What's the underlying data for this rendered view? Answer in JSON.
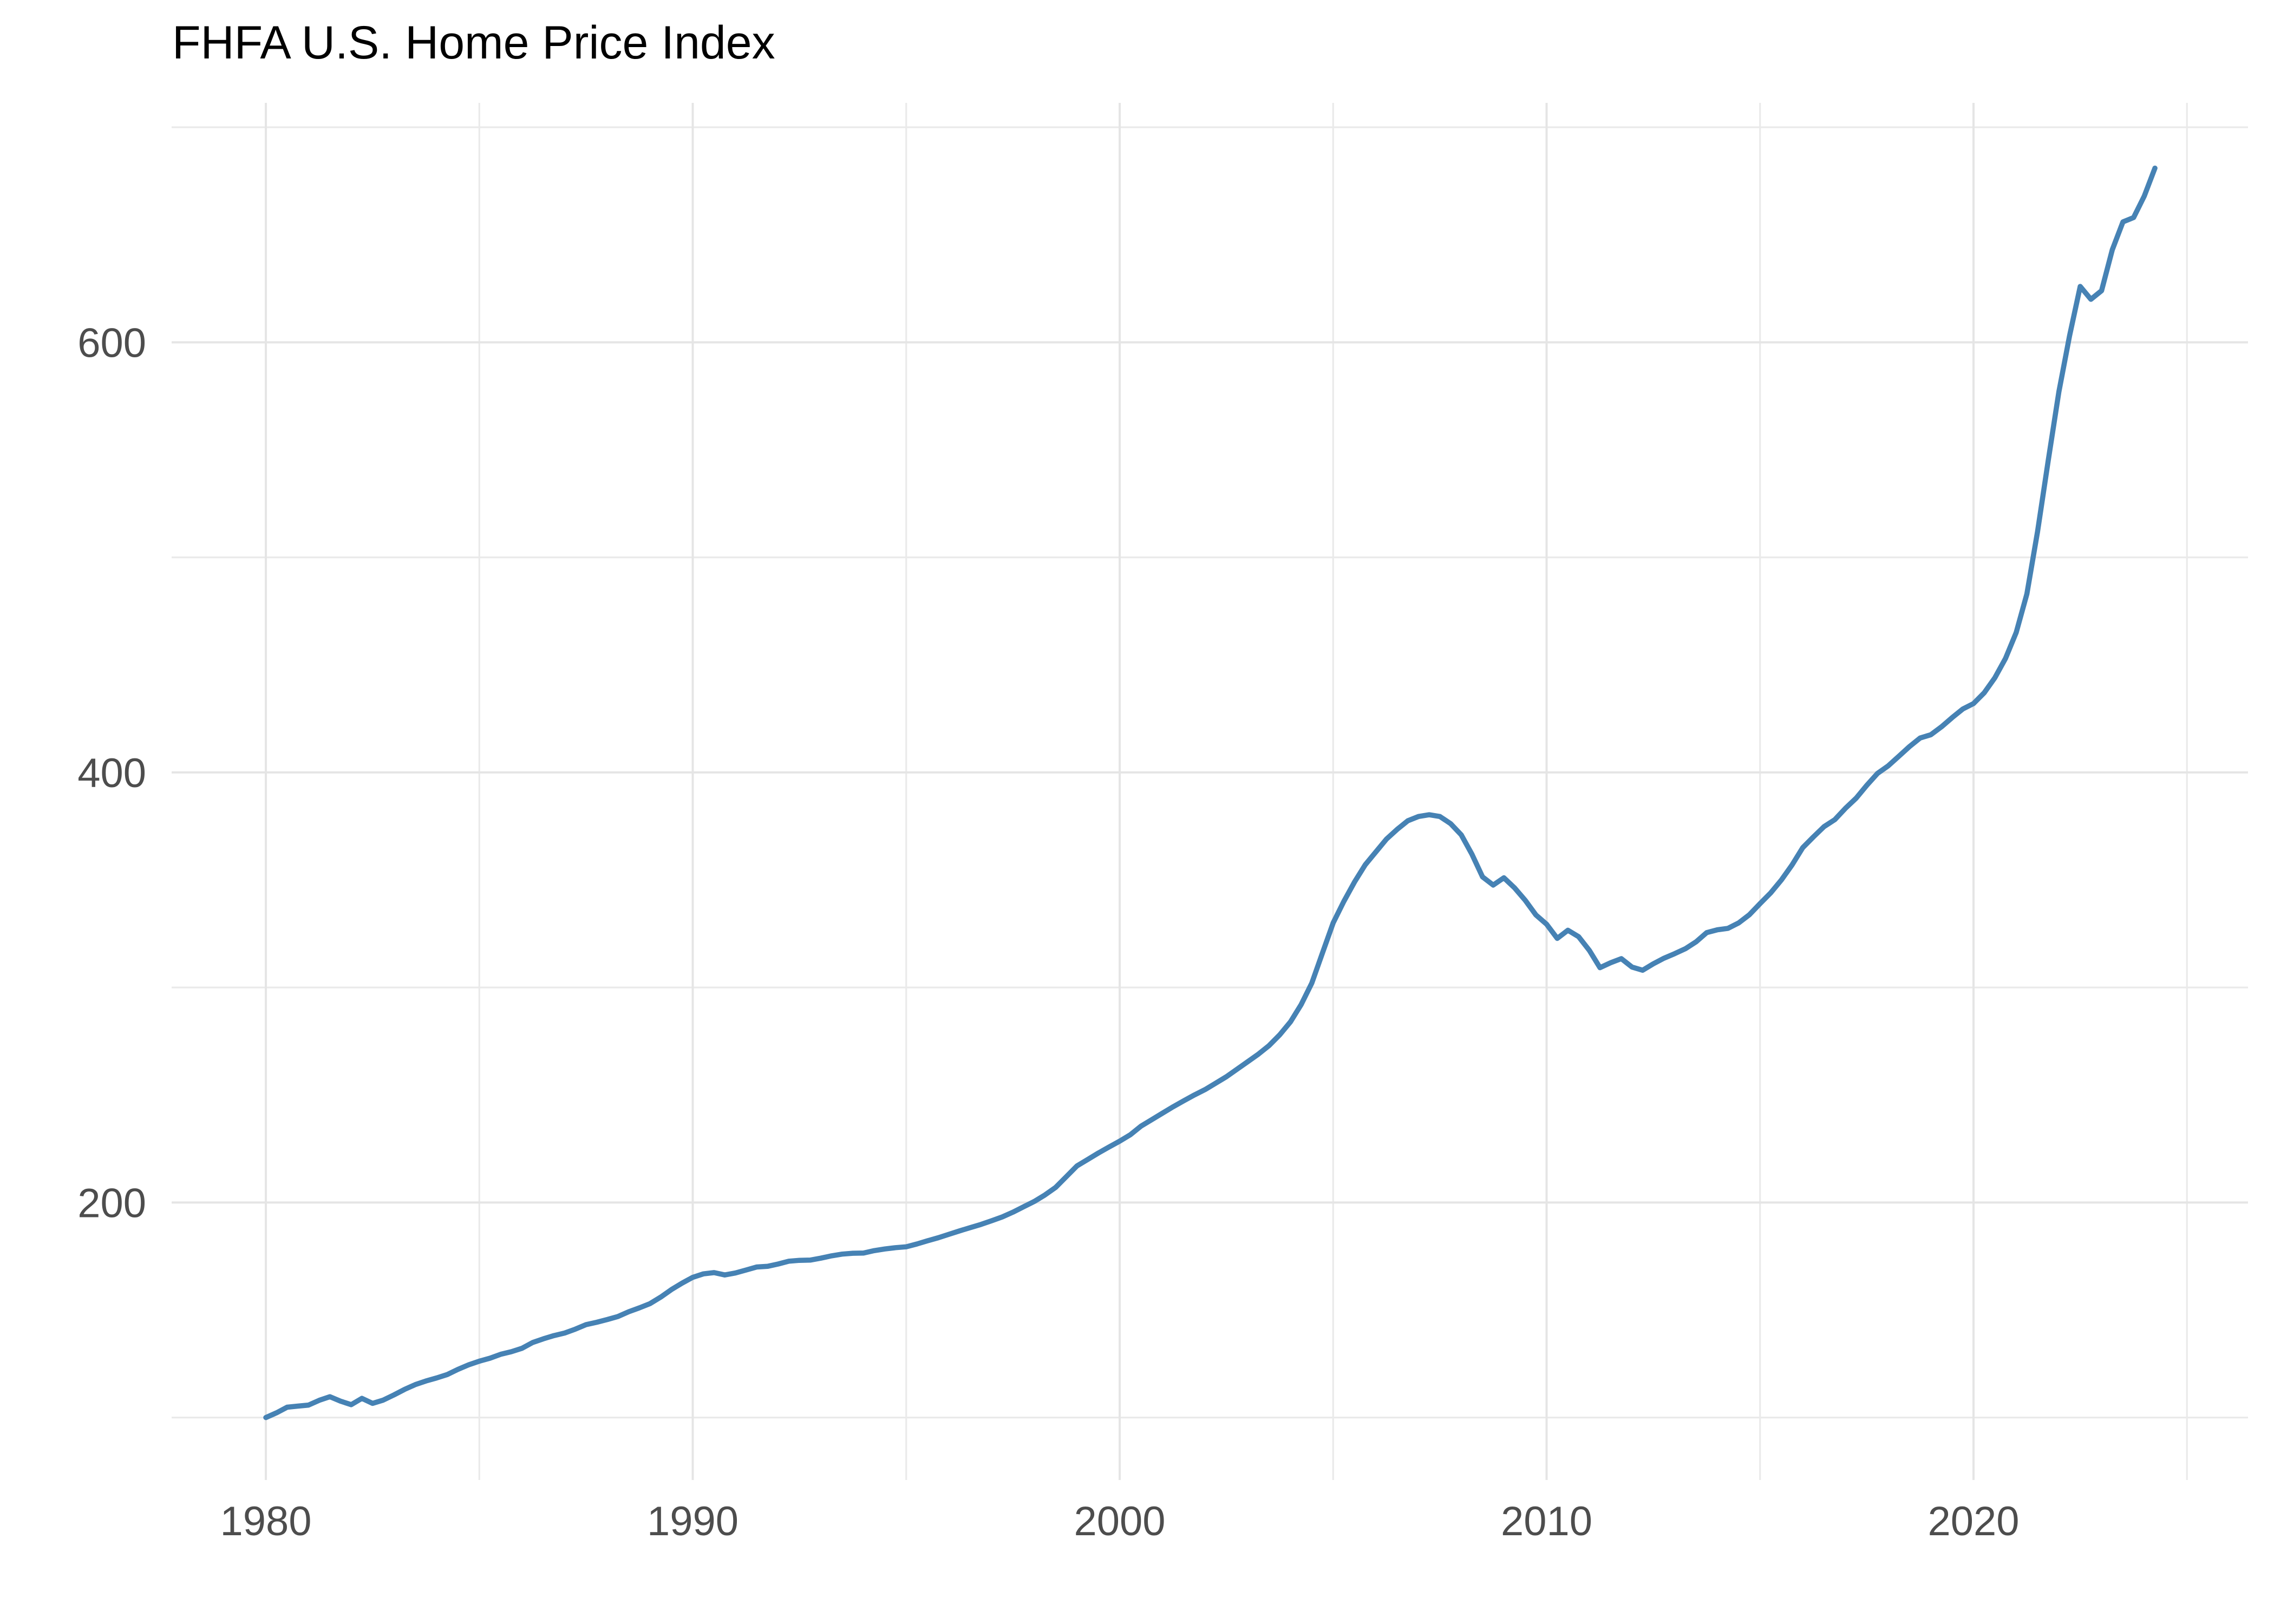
{
  "chart": {
    "title": "FHFA U.S. Home Price Index",
    "colors": {
      "line": "#4682B4",
      "grid_major": "#E5E5E5",
      "grid_minor": "#EAEAEA",
      "axis_text": "#4D4D4D",
      "title_text": "#000000",
      "background": "#FFFFFF"
    },
    "x_axis": {
      "tick_labels": [
        "1980",
        "1990",
        "2000",
        "2010",
        "2020"
      ],
      "tick_years": [
        1980,
        1990,
        2000,
        2010,
        2020
      ],
      "minor_years": [
        1985,
        1995,
        2005,
        2015,
        2025
      ]
    },
    "y_axis": {
      "tick_labels": [
        "200",
        "400",
        "600"
      ],
      "tick_values": [
        200,
        400,
        600
      ],
      "minor_values": [
        100,
        300,
        500,
        700
      ]
    }
  },
  "chart_data": {
    "type": "line",
    "title": "FHFA U.S. Home Price Index",
    "series_name": "FHFA U.S. Home Price Index",
    "frequency": "quarterly",
    "xlabel": "",
    "ylabel": "",
    "x_range": [
      1977.8,
      2026.45
    ],
    "y_range": [
      71,
      711
    ],
    "x_major_ticks": [
      1980,
      1990,
      2000,
      2010,
      2020
    ],
    "y_major_ticks": [
      200,
      400,
      600
    ],
    "grid": "on",
    "legend": "none",
    "points": [
      [
        1980.0,
        100.0
      ],
      [
        1980.25,
        102.2
      ],
      [
        1980.5,
        104.8
      ],
      [
        1980.75,
        105.3
      ],
      [
        1981.0,
        105.8
      ],
      [
        1981.25,
        108.0
      ],
      [
        1981.5,
        109.7
      ],
      [
        1981.75,
        107.6
      ],
      [
        1982.0,
        106.0
      ],
      [
        1982.25,
        108.9
      ],
      [
        1982.5,
        106.6
      ],
      [
        1982.75,
        108.1
      ],
      [
        1983.0,
        110.5
      ],
      [
        1983.25,
        113.1
      ],
      [
        1983.5,
        115.3
      ],
      [
        1983.75,
        117.0
      ],
      [
        1984.0,
        118.4
      ],
      [
        1984.25,
        120.0
      ],
      [
        1984.5,
        122.4
      ],
      [
        1984.75,
        124.5
      ],
      [
        1985.0,
        126.2
      ],
      [
        1985.25,
        127.6
      ],
      [
        1985.5,
        129.4
      ],
      [
        1985.75,
        130.6
      ],
      [
        1986.0,
        132.2
      ],
      [
        1986.25,
        134.9
      ],
      [
        1986.5,
        136.6
      ],
      [
        1986.75,
        138.1
      ],
      [
        1987.0,
        139.3
      ],
      [
        1987.25,
        141.1
      ],
      [
        1987.5,
        143.2
      ],
      [
        1987.75,
        144.3
      ],
      [
        1988.0,
        145.6
      ],
      [
        1988.25,
        147.0
      ],
      [
        1988.5,
        149.2
      ],
      [
        1988.75,
        151.0
      ],
      [
        1989.0,
        153.0
      ],
      [
        1989.25,
        156.0
      ],
      [
        1989.5,
        159.5
      ],
      [
        1989.75,
        162.5
      ],
      [
        1990.0,
        165.2
      ],
      [
        1990.25,
        166.8
      ],
      [
        1990.5,
        167.4
      ],
      [
        1990.75,
        166.3
      ],
      [
        1991.0,
        167.2
      ],
      [
        1991.25,
        168.6
      ],
      [
        1991.5,
        170.0
      ],
      [
        1991.75,
        170.3
      ],
      [
        1992.0,
        171.4
      ],
      [
        1992.25,
        172.7
      ],
      [
        1992.5,
        173.1
      ],
      [
        1992.75,
        173.2
      ],
      [
        1993.0,
        174.1
      ],
      [
        1993.25,
        175.2
      ],
      [
        1993.5,
        176.0
      ],
      [
        1993.75,
        176.4
      ],
      [
        1994.0,
        176.5
      ],
      [
        1994.25,
        177.6
      ],
      [
        1994.5,
        178.4
      ],
      [
        1994.75,
        179.0
      ],
      [
        1995.0,
        179.4
      ],
      [
        1995.25,
        180.7
      ],
      [
        1995.5,
        182.2
      ],
      [
        1995.75,
        183.6
      ],
      [
        1996.0,
        185.2
      ],
      [
        1996.25,
        186.8
      ],
      [
        1996.5,
        188.3
      ],
      [
        1996.75,
        189.8
      ],
      [
        1997.0,
        191.5
      ],
      [
        1997.25,
        193.3
      ],
      [
        1997.5,
        195.5
      ],
      [
        1997.75,
        198.0
      ],
      [
        1998.0,
        200.5
      ],
      [
        1998.25,
        203.5
      ],
      [
        1998.5,
        207.0
      ],
      [
        1998.75,
        212.0
      ],
      [
        1999.0,
        217.0
      ],
      [
        1999.25,
        220.0
      ],
      [
        1999.5,
        223.0
      ],
      [
        1999.75,
        225.8
      ],
      [
        2000.0,
        228.5
      ],
      [
        2000.25,
        231.5
      ],
      [
        2000.5,
        235.5
      ],
      [
        2000.75,
        238.5
      ],
      [
        2001.0,
        241.5
      ],
      [
        2001.25,
        244.5
      ],
      [
        2001.5,
        247.3
      ],
      [
        2001.75,
        250.0
      ],
      [
        2002.0,
        252.5
      ],
      [
        2002.25,
        255.5
      ],
      [
        2002.5,
        258.5
      ],
      [
        2002.75,
        262.0
      ],
      [
        2003.0,
        265.5
      ],
      [
        2003.25,
        269.0
      ],
      [
        2003.5,
        273.0
      ],
      [
        2003.75,
        278.0
      ],
      [
        2004.0,
        284.0
      ],
      [
        2004.25,
        292.0
      ],
      [
        2004.5,
        302.0
      ],
      [
        2004.75,
        316.0
      ],
      [
        2005.0,
        330.0
      ],
      [
        2005.25,
        340.0
      ],
      [
        2005.5,
        349.0
      ],
      [
        2005.75,
        357.0
      ],
      [
        2006.0,
        363.0
      ],
      [
        2006.25,
        369.0
      ],
      [
        2006.5,
        373.5
      ],
      [
        2006.75,
        377.5
      ],
      [
        2007.0,
        379.5
      ],
      [
        2007.25,
        380.3
      ],
      [
        2007.5,
        379.5
      ],
      [
        2007.75,
        376.2
      ],
      [
        2008.0,
        371.0
      ],
      [
        2008.25,
        362.0
      ],
      [
        2008.5,
        351.4
      ],
      [
        2008.75,
        347.6
      ],
      [
        2009.0,
        351.0
      ],
      [
        2009.25,
        346.3
      ],
      [
        2009.5,
        340.5
      ],
      [
        2009.75,
        333.7
      ],
      [
        2010.0,
        329.4
      ],
      [
        2010.25,
        322.8
      ],
      [
        2010.5,
        326.6
      ],
      [
        2010.75,
        323.6
      ],
      [
        2011.0,
        317.3
      ],
      [
        2011.25,
        309.2
      ],
      [
        2011.5,
        311.5
      ],
      [
        2011.75,
        313.4
      ],
      [
        2012.0,
        309.5
      ],
      [
        2012.25,
        308.0
      ],
      [
        2012.5,
        311.0
      ],
      [
        2012.75,
        313.6
      ],
      [
        2013.0,
        315.7
      ],
      [
        2013.25,
        318.0
      ],
      [
        2013.5,
        321.2
      ],
      [
        2013.75,
        325.5
      ],
      [
        2014.0,
        326.8
      ],
      [
        2014.25,
        327.5
      ],
      [
        2014.5,
        330.0
      ],
      [
        2014.75,
        333.8
      ],
      [
        2015.0,
        339.0
      ],
      [
        2015.25,
        344.0
      ],
      [
        2015.5,
        350.0
      ],
      [
        2015.75,
        357.0
      ],
      [
        2016.0,
        365.0
      ],
      [
        2016.25,
        370.0
      ],
      [
        2016.5,
        374.8
      ],
      [
        2016.75,
        378.0
      ],
      [
        2017.0,
        383.3
      ],
      [
        2017.25,
        388.0
      ],
      [
        2017.5,
        394.0
      ],
      [
        2017.75,
        399.5
      ],
      [
        2018.0,
        403.0
      ],
      [
        2018.25,
        407.5
      ],
      [
        2018.5,
        412.0
      ],
      [
        2018.75,
        416.0
      ],
      [
        2019.0,
        417.5
      ],
      [
        2019.25,
        421.2
      ],
      [
        2019.5,
        425.5
      ],
      [
        2019.75,
        429.5
      ],
      [
        2020.0,
        432.0
      ],
      [
        2020.25,
        437.0
      ],
      [
        2020.5,
        444.0
      ],
      [
        2020.75,
        453.0
      ],
      [
        2021.0,
        465.0
      ],
      [
        2021.25,
        483.0
      ],
      [
        2021.5,
        512.0
      ],
      [
        2021.75,
        545.0
      ],
      [
        2022.0,
        577.0
      ],
      [
        2022.25,
        603.0
      ],
      [
        2022.5,
        626.0
      ],
      [
        2022.75,
        620.0
      ],
      [
        2023.0,
        624.0
      ],
      [
        2023.25,
        643.0
      ],
      [
        2023.5,
        656.0
      ],
      [
        2023.75,
        658.0
      ],
      [
        2024.0,
        668.0
      ],
      [
        2024.25,
        681.0
      ]
    ]
  }
}
